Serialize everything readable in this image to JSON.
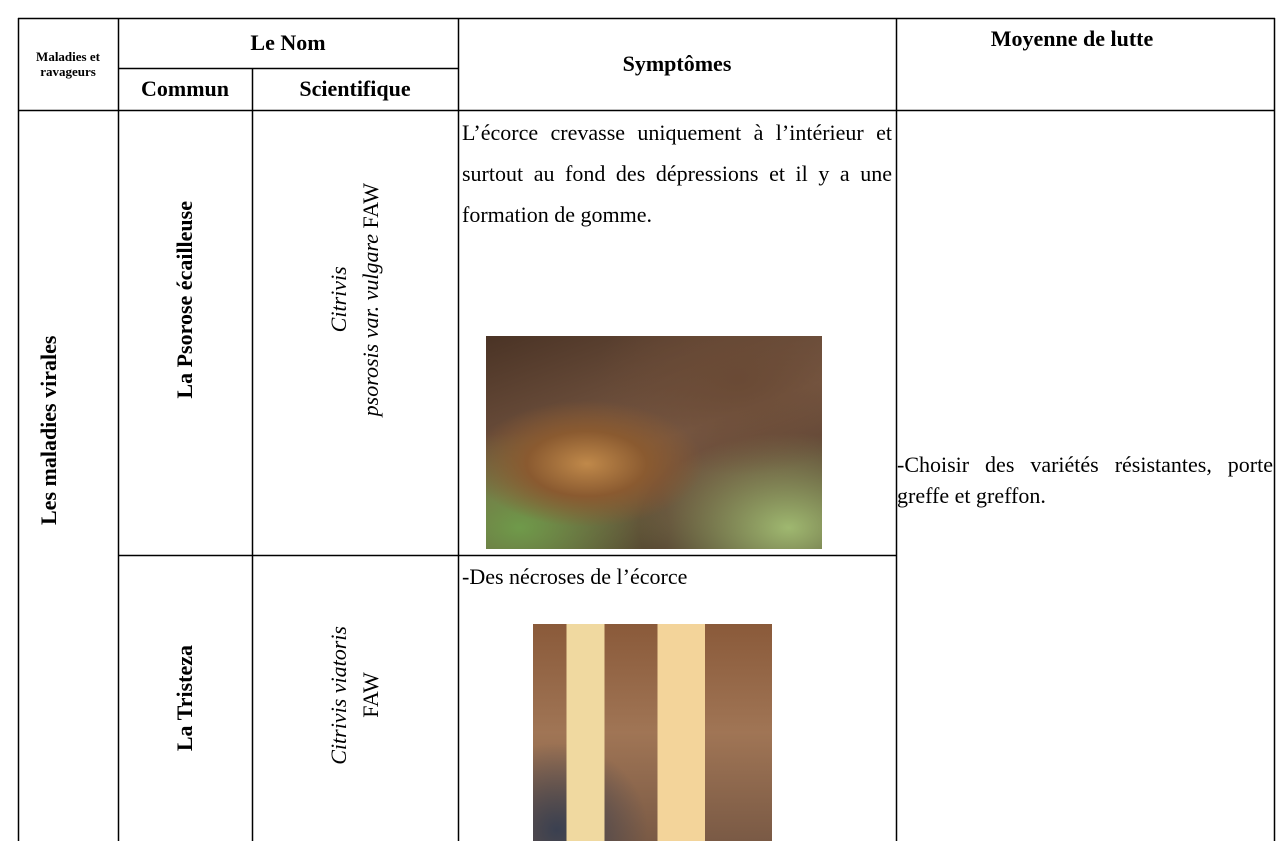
{
  "table": {
    "header": {
      "category": "Maladies et ravageurs",
      "name": "Le Nom",
      "common": "Commun",
      "scientific": "Scientifique",
      "symptoms": "Symptômes",
      "control": "Moyenne de lutte"
    },
    "group": "Les maladies virales",
    "rows": [
      {
        "common": "La Psorose écailleuse",
        "scientific_genus": "Citrivis",
        "scientific_rest": "psorosis var. vulgare",
        "authority": "FAW",
        "symptoms": "L’écorce crevasse uniquement à l’intérieur et surtout au fond des dépressions et il y a une formation de gomme."
      },
      {
        "common": "La Tristeza",
        "scientific_genus": "Citrivis viatoris",
        "authority": "FAW",
        "symptoms": "-Des nécroses de l’écorce"
      }
    ],
    "control": "-Choisir des variétés résistantes, porte greffe et greffon."
  }
}
